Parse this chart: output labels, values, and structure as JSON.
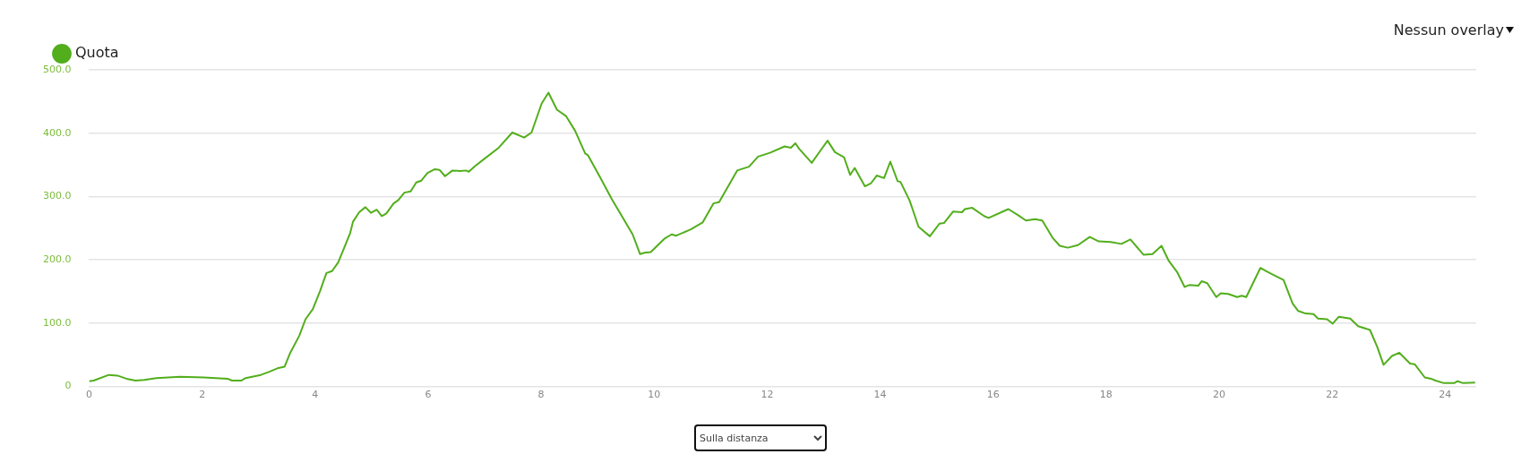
{
  "chart_data": {
    "type": "line",
    "legend": "top left",
    "grid": "y",
    "xlim": [
      0,
      24.55
    ],
    "xticks": [
      0,
      2,
      4,
      6,
      8,
      10,
      12,
      14,
      16,
      18,
      20,
      22,
      24
    ],
    "ylim": [
      0,
      500
    ],
    "yticks": [
      0,
      {
        "value": 100,
        "label": "100.0"
      },
      {
        "value": 200,
        "label": "200.0"
      },
      {
        "value": 300,
        "label": "300.0"
      },
      {
        "value": 400,
        "label": "400.0"
      },
      {
        "value": 500,
        "label": "500.0"
      }
    ],
    "annotations": [
      "Nessun overlay",
      "Sulla distanza"
    ],
    "series": [
      {
        "name": "Quota",
        "color": "#52ae1c",
        "x": [
          0,
          0.08,
          0.35,
          0.5,
          0.66,
          0.82,
          0.98,
          1.19,
          1.61,
          2.03,
          2.45,
          2.53,
          2.69,
          2.77,
          3.04,
          3.19,
          3.35,
          3.46,
          3.56,
          3.72,
          3.83,
          3.96,
          4.09,
          4.2,
          4.3,
          4.41,
          4.62,
          4.67,
          4.78,
          4.89,
          4.99,
          5.09,
          5.18,
          5.26,
          5.39,
          5.47,
          5.58,
          5.69,
          5.79,
          5.88,
          5.99,
          6.12,
          6.2,
          6.3,
          6.43,
          6.57,
          6.67,
          6.72,
          6.83,
          6.99,
          7.25,
          7.49,
          7.7,
          7.83,
          8.01,
          8.13,
          8.28,
          8.44,
          8.6,
          8.78,
          8.83,
          9.04,
          9.25,
          9.62,
          9.75,
          9.83,
          9.94,
          10.18,
          10.31,
          10.39,
          10.65,
          10.86,
          11.05,
          11.15,
          11.47,
          11.68,
          11.84,
          12.05,
          12.31,
          12.42,
          12.5,
          12.57,
          12.79,
          12.94,
          13.07,
          13.2,
          13.36,
          13.47,
          13.55,
          13.73,
          13.84,
          13.94,
          14.07,
          14.18,
          14.31,
          14.36,
          14.52,
          14.68,
          14.88,
          15.05,
          15.13,
          15.29,
          15.45,
          15.5,
          15.63,
          15.84,
          15.92,
          16.27,
          16.45,
          16.58,
          16.74,
          16.87,
          17.05,
          17.18,
          17.32,
          17.5,
          17.71,
          17.87,
          18.08,
          18.27,
          18.43,
          18.66,
          18.82,
          18.98,
          19.11,
          19.26,
          19.39,
          19.47,
          19.63,
          19.69,
          19.79,
          19.95,
          20.03,
          20.16,
          20.32,
          20.4,
          20.48,
          20.73,
          20.85,
          20.98,
          21.14,
          21.3,
          21.4,
          21.53,
          21.67,
          21.75,
          21.91,
          22.01,
          22.12,
          22.32,
          22.46,
          22.67,
          22.8,
          22.91,
          23.06,
          23.19,
          23.38,
          23.46,
          23.64,
          23.75,
          23.83,
          23.98,
          24.16,
          24.22,
          24.32,
          24.53
        ],
        "values": [
          8,
          9,
          18,
          17,
          12,
          9,
          10,
          13,
          15,
          14,
          12,
          9,
          9,
          13,
          18,
          23,
          29,
          31,
          53,
          80,
          106,
          122,
          151,
          179,
          182,
          196,
          242,
          260,
          275,
          283,
          274,
          279,
          269,
          273,
          289,
          294,
          306,
          308,
          322,
          325,
          337,
          343,
          342,
          332,
          341,
          340,
          341,
          339,
          348,
          359,
          377,
          401,
          393,
          401,
          447,
          464,
          437,
          427,
          404,
          368,
          365,
          331,
          296,
          240,
          209,
          211,
          212,
          233,
          240,
          238,
          248,
          259,
          289,
          291,
          341,
          347,
          363,
          369,
          379,
          377,
          384,
          375,
          353,
          372,
          388,
          370,
          362,
          334,
          345,
          316,
          321,
          333,
          329,
          355,
          324,
          323,
          294,
          252,
          237,
          257,
          258,
          276,
          275,
          280,
          282,
          269,
          266,
          280,
          270,
          262,
          264,
          262,
          235,
          222,
          219,
          223,
          236,
          229,
          228,
          225,
          232,
          208,
          209,
          222,
          198,
          180,
          157,
          160,
          159,
          166,
          163,
          141,
          147,
          146,
          141,
          143,
          141,
          187,
          181,
          175,
          168,
          131,
          119,
          115,
          114,
          107,
          106,
          99,
          110,
          107,
          95,
          89,
          62,
          34,
          48,
          53,
          36,
          35,
          14,
          12,
          9,
          5,
          5,
          8,
          5,
          6
        ]
      }
    ]
  }
}
